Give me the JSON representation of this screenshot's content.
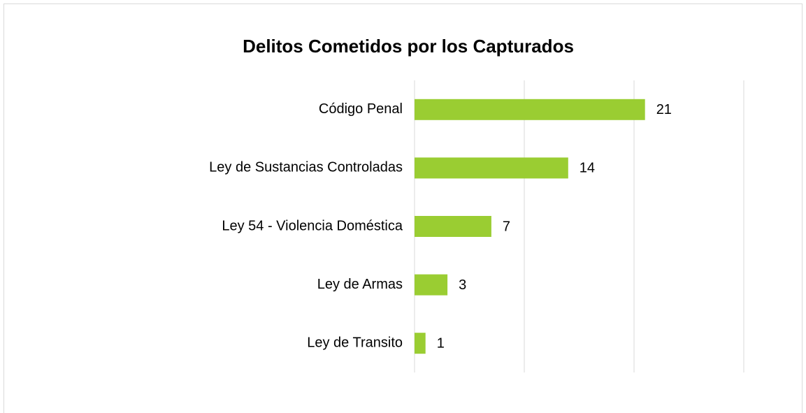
{
  "chart_data": {
    "type": "barh",
    "title": "Delitos Cometidos por los Capturados",
    "categories": [
      "Código Penal",
      "Ley de Sustancias Controladas",
      "Ley 54 - Violencia Doméstica",
      "Ley de Armas",
      "Ley de Transito"
    ],
    "values": [
      21,
      14,
      7,
      3,
      1
    ],
    "color": "#9acd32",
    "xlim": [
      0,
      30
    ],
    "xticks": [
      0,
      10,
      20,
      30
    ],
    "grid": true
  }
}
